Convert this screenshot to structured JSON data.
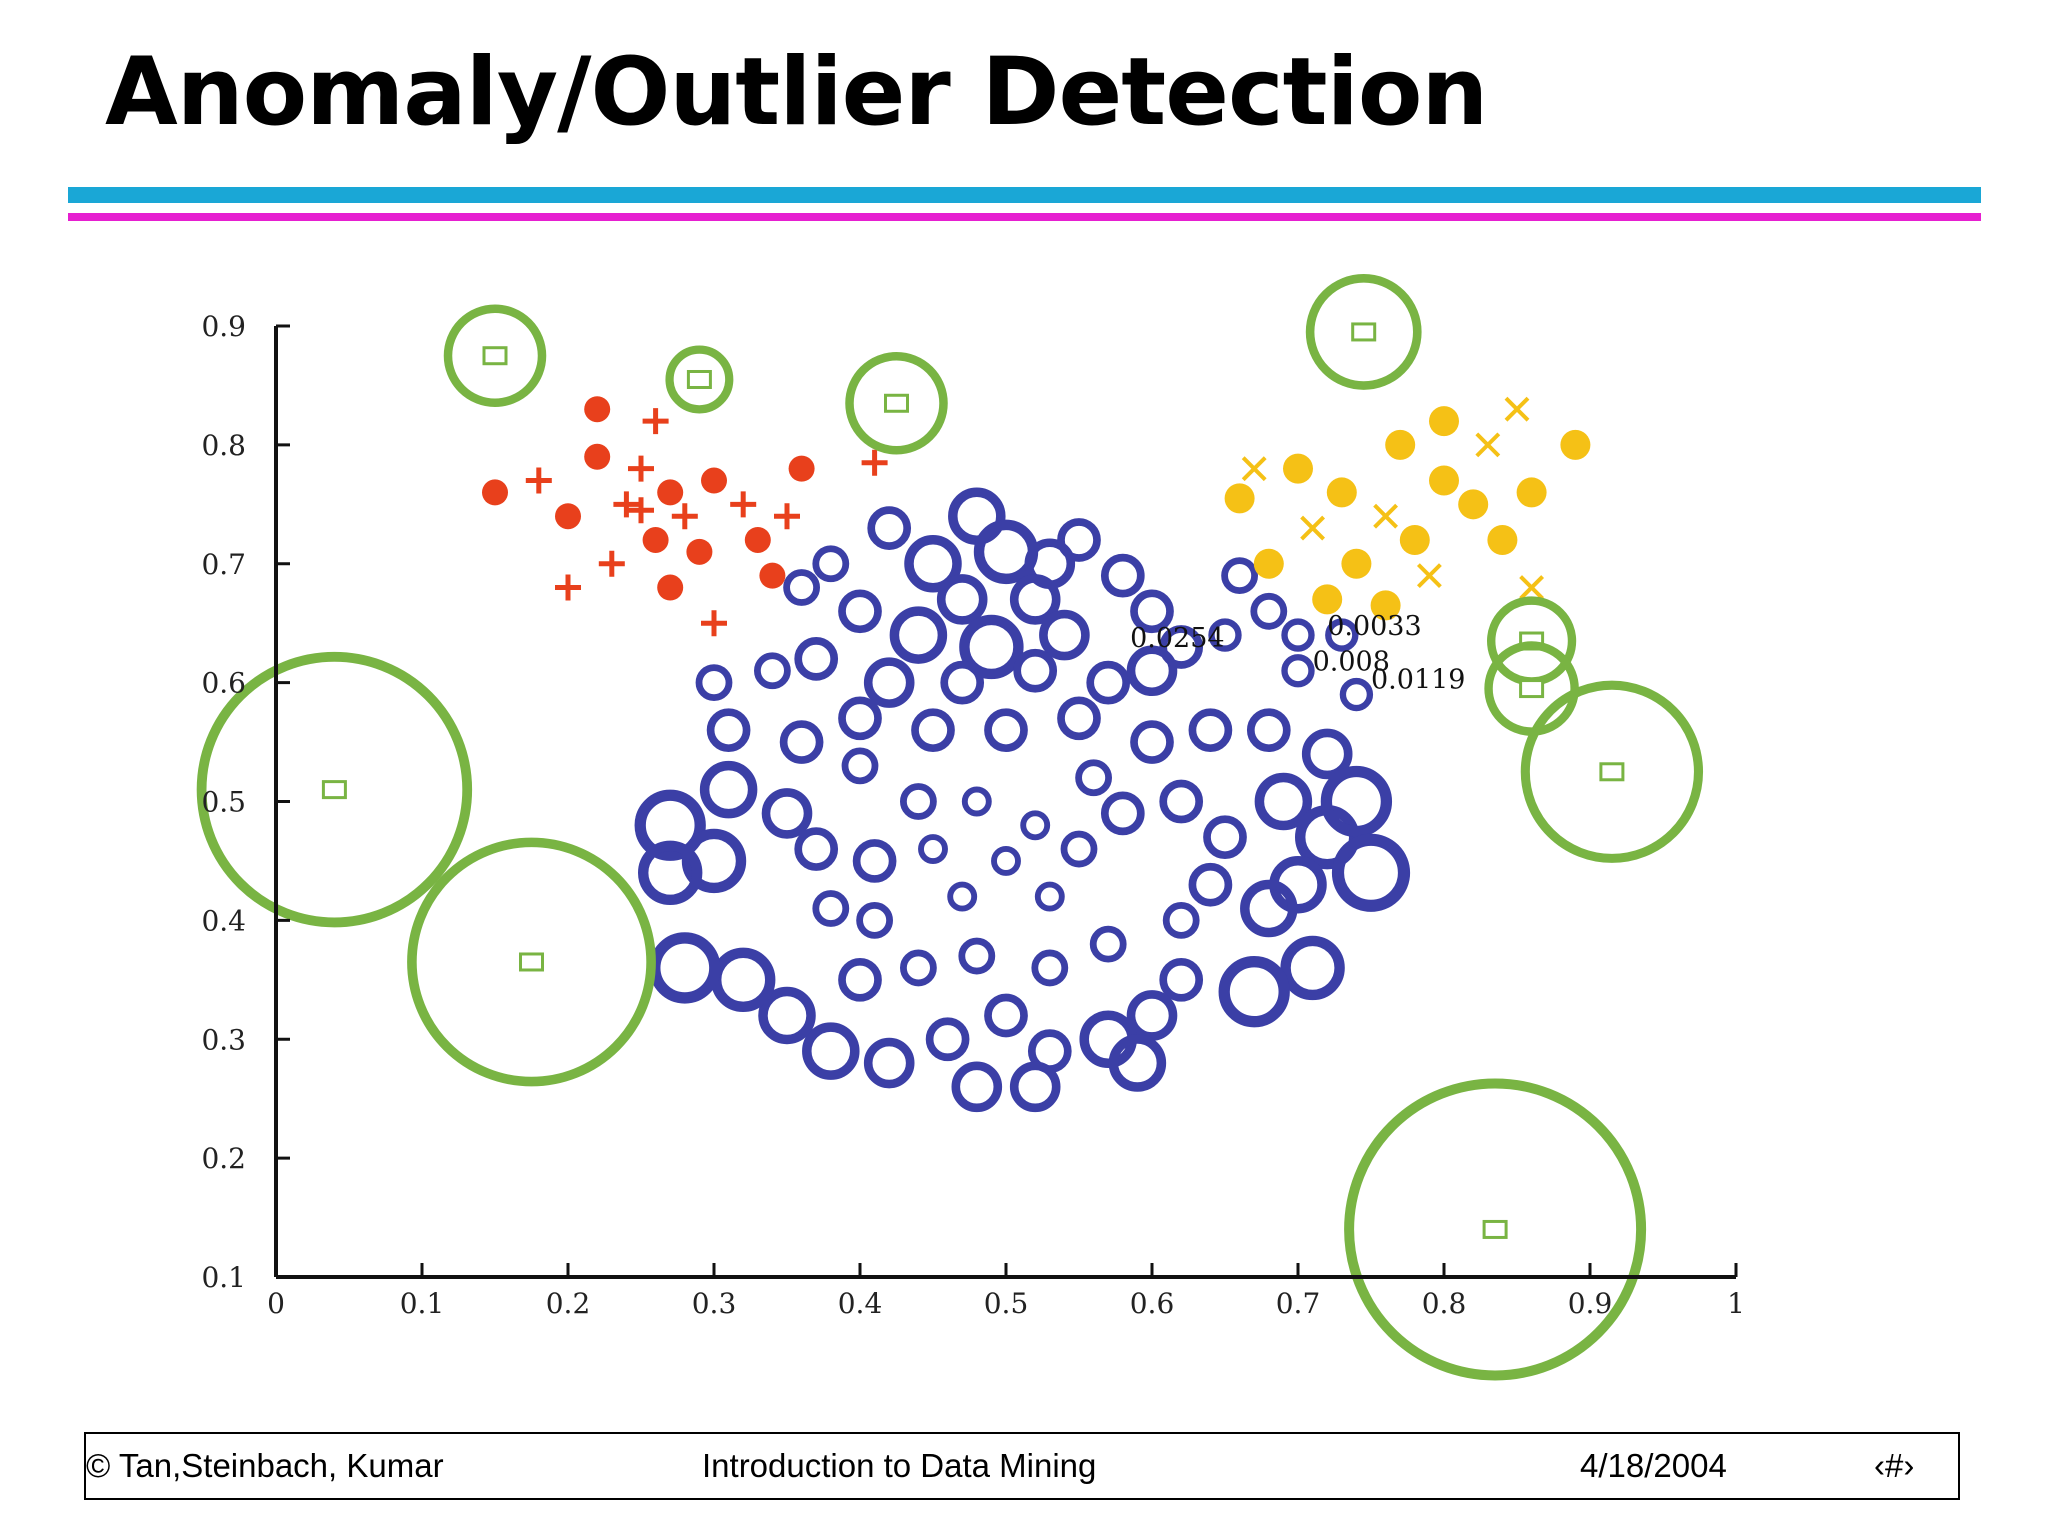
{
  "slide": {
    "title": "Anomaly/Outlier Detection",
    "footer": {
      "copyright": "© Tan,Steinbach, Kumar",
      "course": "Introduction to Data Mining",
      "date": "4/18/2004",
      "page": "‹#›"
    }
  },
  "colors": {
    "accent_cyan": "#1aa7d6",
    "accent_magenta": "#e61fd0",
    "cluster_red": "#e8401c",
    "cluster_yellow": "#f5c116",
    "cluster_blue": "#3b3fa6",
    "outlier_green": "#79b443"
  },
  "chart_data": {
    "type": "scatter",
    "title": "",
    "xlabel": "",
    "ylabel": "",
    "xlim": [
      0,
      1
    ],
    "ylim": [
      0.1,
      0.9
    ],
    "x_ticks": [
      0,
      0.1,
      0.2,
      0.3,
      0.4,
      0.5,
      0.6,
      0.7,
      0.8,
      0.9,
      1
    ],
    "x_tick_labels": [
      "0",
      "0.1",
      "0.2",
      "0.3",
      "0.4",
      "0.5",
      "0.6",
      "0.7",
      "0.8",
      "0.9",
      "1"
    ],
    "y_ticks": [
      0.1,
      0.2,
      0.3,
      0.4,
      0.5,
      0.6,
      0.7,
      0.8,
      0.9
    ],
    "y_tick_labels": [
      "0.1",
      "0.2",
      "0.3",
      "0.4",
      "0.5",
      "0.6",
      "0.7",
      "0.8",
      "0.9"
    ],
    "grid": false,
    "annotations": [
      {
        "text": "0.0254",
        "x": 0.585,
        "y": 0.63
      },
      {
        "text": "0.0033",
        "x": 0.72,
        "y": 0.64
      },
      {
        "text": "0.008",
        "x": 0.71,
        "y": 0.61
      },
      {
        "text": "0.0119",
        "x": 0.75,
        "y": 0.595
      }
    ],
    "series": [
      {
        "name": "outliers",
        "color": "#79b443",
        "marker": "square-with-ring",
        "points": [
          {
            "x": 0.04,
            "y": 0.51,
            "score": 0.9
          },
          {
            "x": 0.175,
            "y": 0.365,
            "score": 0.8
          },
          {
            "x": 0.835,
            "y": 0.14,
            "score": 1.0
          },
          {
            "x": 0.915,
            "y": 0.525,
            "score": 0.55
          },
          {
            "x": 0.15,
            "y": 0.875,
            "score": 0.25
          },
          {
            "x": 0.29,
            "y": 0.855,
            "score": 0.12
          },
          {
            "x": 0.425,
            "y": 0.835,
            "score": 0.25
          },
          {
            "x": 0.745,
            "y": 0.895,
            "score": 0.3
          },
          {
            "x": 0.86,
            "y": 0.635,
            "score": 0.2
          },
          {
            "x": 0.86,
            "y": 0.595,
            "score": 0.22
          }
        ]
      },
      {
        "name": "cluster-red",
        "color": "#e8401c",
        "marker": "dot-and-cross",
        "points": [
          {
            "x": 0.22,
            "y": 0.79
          },
          {
            "x": 0.25,
            "y": 0.78
          },
          {
            "x": 0.27,
            "y": 0.76
          },
          {
            "x": 0.28,
            "y": 0.74
          },
          {
            "x": 0.26,
            "y": 0.72
          },
          {
            "x": 0.24,
            "y": 0.75
          },
          {
            "x": 0.3,
            "y": 0.77
          },
          {
            "x": 0.32,
            "y": 0.75
          },
          {
            "x": 0.29,
            "y": 0.71
          },
          {
            "x": 0.23,
            "y": 0.7
          },
          {
            "x": 0.2,
            "y": 0.74
          },
          {
            "x": 0.18,
            "y": 0.77
          },
          {
            "x": 0.33,
            "y": 0.72
          },
          {
            "x": 0.35,
            "y": 0.74
          },
          {
            "x": 0.36,
            "y": 0.78
          },
          {
            "x": 0.26,
            "y": 0.82
          },
          {
            "x": 0.22,
            "y": 0.83
          },
          {
            "x": 0.2,
            "y": 0.68
          },
          {
            "x": 0.27,
            "y": 0.68
          },
          {
            "x": 0.3,
            "y": 0.65
          },
          {
            "x": 0.15,
            "y": 0.76
          },
          {
            "x": 0.41,
            "y": 0.785
          },
          {
            "x": 0.34,
            "y": 0.69
          },
          {
            "x": 0.25,
            "y": 0.745
          }
        ]
      },
      {
        "name": "cluster-yellow",
        "color": "#f5c116",
        "marker": "dot-and-x",
        "points": [
          {
            "x": 0.7,
            "y": 0.78
          },
          {
            "x": 0.73,
            "y": 0.76
          },
          {
            "x": 0.76,
            "y": 0.74
          },
          {
            "x": 0.78,
            "y": 0.72
          },
          {
            "x": 0.74,
            "y": 0.7
          },
          {
            "x": 0.71,
            "y": 0.73
          },
          {
            "x": 0.8,
            "y": 0.77
          },
          {
            "x": 0.82,
            "y": 0.75
          },
          {
            "x": 0.79,
            "y": 0.69
          },
          {
            "x": 0.84,
            "y": 0.72
          },
          {
            "x": 0.86,
            "y": 0.76
          },
          {
            "x": 0.83,
            "y": 0.8
          },
          {
            "x": 0.8,
            "y": 0.82
          },
          {
            "x": 0.77,
            "y": 0.8
          },
          {
            "x": 0.67,
            "y": 0.78
          },
          {
            "x": 0.66,
            "y": 0.755
          },
          {
            "x": 0.89,
            "y": 0.8
          },
          {
            "x": 0.86,
            "y": 0.68
          },
          {
            "x": 0.68,
            "y": 0.7
          },
          {
            "x": 0.72,
            "y": 0.67
          },
          {
            "x": 0.85,
            "y": 0.83
          },
          {
            "x": 0.76,
            "y": 0.665
          }
        ]
      },
      {
        "name": "cluster-blue",
        "color": "#3b3fa6",
        "marker": "ring",
        "points": [
          {
            "x": 0.48,
            "y": 0.74,
            "s": 0.5
          },
          {
            "x": 0.5,
            "y": 0.71,
            "s": 0.6
          },
          {
            "x": 0.45,
            "y": 0.7,
            "s": 0.5
          },
          {
            "x": 0.53,
            "y": 0.7,
            "s": 0.4
          },
          {
            "x": 0.55,
            "y": 0.72,
            "s": 0.3
          },
          {
            "x": 0.42,
            "y": 0.73,
            "s": 0.3
          },
          {
            "x": 0.47,
            "y": 0.67,
            "s": 0.4
          },
          {
            "x": 0.52,
            "y": 0.67,
            "s": 0.4
          },
          {
            "x": 0.44,
            "y": 0.64,
            "s": 0.5
          },
          {
            "x": 0.49,
            "y": 0.63,
            "s": 0.6
          },
          {
            "x": 0.54,
            "y": 0.64,
            "s": 0.4
          },
          {
            "x": 0.58,
            "y": 0.69,
            "s": 0.3
          },
          {
            "x": 0.6,
            "y": 0.66,
            "s": 0.3
          },
          {
            "x": 0.4,
            "y": 0.66,
            "s": 0.3
          },
          {
            "x": 0.37,
            "y": 0.62,
            "s": 0.3
          },
          {
            "x": 0.34,
            "y": 0.61,
            "s": 0.2
          },
          {
            "x": 0.42,
            "y": 0.6,
            "s": 0.4
          },
          {
            "x": 0.47,
            "y": 0.6,
            "s": 0.3
          },
          {
            "x": 0.52,
            "y": 0.61,
            "s": 0.3
          },
          {
            "x": 0.57,
            "y": 0.6,
            "s": 0.3
          },
          {
            "x": 0.6,
            "y": 0.61,
            "s": 0.4
          },
          {
            "x": 0.62,
            "y": 0.63,
            "s": 0.3
          },
          {
            "x": 0.3,
            "y": 0.6,
            "s": 0.2
          },
          {
            "x": 0.31,
            "y": 0.56,
            "s": 0.3
          },
          {
            "x": 0.36,
            "y": 0.55,
            "s": 0.3
          },
          {
            "x": 0.4,
            "y": 0.57,
            "s": 0.3
          },
          {
            "x": 0.45,
            "y": 0.56,
            "s": 0.3
          },
          {
            "x": 0.5,
            "y": 0.56,
            "s": 0.3
          },
          {
            "x": 0.55,
            "y": 0.57,
            "s": 0.3
          },
          {
            "x": 0.6,
            "y": 0.55,
            "s": 0.3
          },
          {
            "x": 0.64,
            "y": 0.56,
            "s": 0.3
          },
          {
            "x": 0.68,
            "y": 0.56,
            "s": 0.3
          },
          {
            "x": 0.72,
            "y": 0.54,
            "s": 0.4
          },
          {
            "x": 0.31,
            "y": 0.51,
            "s": 0.5
          },
          {
            "x": 0.35,
            "y": 0.49,
            "s": 0.4
          },
          {
            "x": 0.27,
            "y": 0.48,
            "s": 0.7
          },
          {
            "x": 0.3,
            "y": 0.45,
            "s": 0.6
          },
          {
            "x": 0.27,
            "y": 0.44,
            "s": 0.6
          },
          {
            "x": 0.37,
            "y": 0.46,
            "s": 0.3
          },
          {
            "x": 0.41,
            "y": 0.45,
            "s": 0.3
          },
          {
            "x": 0.44,
            "y": 0.5,
            "s": 0.2
          },
          {
            "x": 0.48,
            "y": 0.5,
            "s": 0.1
          },
          {
            "x": 0.52,
            "y": 0.48,
            "s": 0.1
          },
          {
            "x": 0.5,
            "y": 0.45,
            "s": 0.1
          },
          {
            "x": 0.47,
            "y": 0.42,
            "s": 0.1
          },
          {
            "x": 0.53,
            "y": 0.42,
            "s": 0.1
          },
          {
            "x": 0.45,
            "y": 0.46,
            "s": 0.1
          },
          {
            "x": 0.55,
            "y": 0.46,
            "s": 0.2
          },
          {
            "x": 0.58,
            "y": 0.49,
            "s": 0.3
          },
          {
            "x": 0.62,
            "y": 0.5,
            "s": 0.3
          },
          {
            "x": 0.65,
            "y": 0.47,
            "s": 0.3
          },
          {
            "x": 0.69,
            "y": 0.5,
            "s": 0.5
          },
          {
            "x": 0.72,
            "y": 0.47,
            "s": 0.6
          },
          {
            "x": 0.74,
            "y": 0.5,
            "s": 0.7
          },
          {
            "x": 0.75,
            "y": 0.44,
            "s": 0.8
          },
          {
            "x": 0.7,
            "y": 0.43,
            "s": 0.5
          },
          {
            "x": 0.68,
            "y": 0.41,
            "s": 0.5
          },
          {
            "x": 0.71,
            "y": 0.36,
            "s": 0.6
          },
          {
            "x": 0.67,
            "y": 0.34,
            "s": 0.7
          },
          {
            "x": 0.62,
            "y": 0.35,
            "s": 0.3
          },
          {
            "x": 0.6,
            "y": 0.32,
            "s": 0.4
          },
          {
            "x": 0.57,
            "y": 0.3,
            "s": 0.5
          },
          {
            "x": 0.59,
            "y": 0.28,
            "s": 0.5
          },
          {
            "x": 0.53,
            "y": 0.29,
            "s": 0.3
          },
          {
            "x": 0.5,
            "y": 0.32,
            "s": 0.3
          },
          {
            "x": 0.46,
            "y": 0.3,
            "s": 0.3
          },
          {
            "x": 0.42,
            "y": 0.28,
            "s": 0.4
          },
          {
            "x": 0.38,
            "y": 0.29,
            "s": 0.5
          },
          {
            "x": 0.35,
            "y": 0.32,
            "s": 0.5
          },
          {
            "x": 0.32,
            "y": 0.35,
            "s": 0.6
          },
          {
            "x": 0.28,
            "y": 0.36,
            "s": 0.7
          },
          {
            "x": 0.4,
            "y": 0.35,
            "s": 0.3
          },
          {
            "x": 0.44,
            "y": 0.36,
            "s": 0.2
          },
          {
            "x": 0.48,
            "y": 0.37,
            "s": 0.2
          },
          {
            "x": 0.53,
            "y": 0.36,
            "s": 0.2
          },
          {
            "x": 0.57,
            "y": 0.38,
            "s": 0.2
          },
          {
            "x": 0.62,
            "y": 0.4,
            "s": 0.2
          },
          {
            "x": 0.64,
            "y": 0.43,
            "s": 0.3
          },
          {
            "x": 0.41,
            "y": 0.4,
            "s": 0.2
          },
          {
            "x": 0.38,
            "y": 0.41,
            "s": 0.2
          },
          {
            "x": 0.52,
            "y": 0.26,
            "s": 0.4
          },
          {
            "x": 0.48,
            "y": 0.26,
            "s": 0.4
          },
          {
            "x": 0.4,
            "y": 0.53,
            "s": 0.2
          },
          {
            "x": 0.56,
            "y": 0.52,
            "s": 0.2
          },
          {
            "x": 0.36,
            "y": 0.68,
            "s": 0.2
          },
          {
            "x": 0.38,
            "y": 0.7,
            "s": 0.2
          },
          {
            "x": 0.66,
            "y": 0.69,
            "s": 0.2
          },
          {
            "x": 0.68,
            "y": 0.66,
            "s": 0.2
          },
          {
            "x": 0.7,
            "y": 0.61,
            "s": 0.15
          },
          {
            "x": 0.74,
            "y": 0.59,
            "s": 0.15
          },
          {
            "x": 0.73,
            "y": 0.64,
            "s": 0.15
          },
          {
            "x": 0.7,
            "y": 0.64,
            "s": 0.15
          },
          {
            "x": 0.65,
            "y": 0.64,
            "s": 0.15
          }
        ]
      }
    ]
  }
}
